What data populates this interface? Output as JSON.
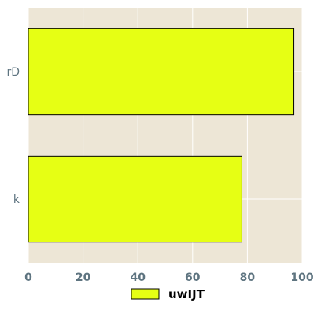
{
  "chart_data": {
    "type": "bar",
    "orientation": "horizontal",
    "categories": [
      "rD",
      "k"
    ],
    "series": [
      {
        "name": "uwIJT",
        "values": [
          97,
          78
        ],
        "color": "#e6ff14"
      }
    ],
    "xlim": [
      0,
      100
    ],
    "xticks": [
      0,
      20,
      40,
      60,
      80,
      100
    ],
    "grid": true,
    "legend_position": "bottom",
    "plot_background": "#ede6d6",
    "grid_color": "#ffffff"
  }
}
